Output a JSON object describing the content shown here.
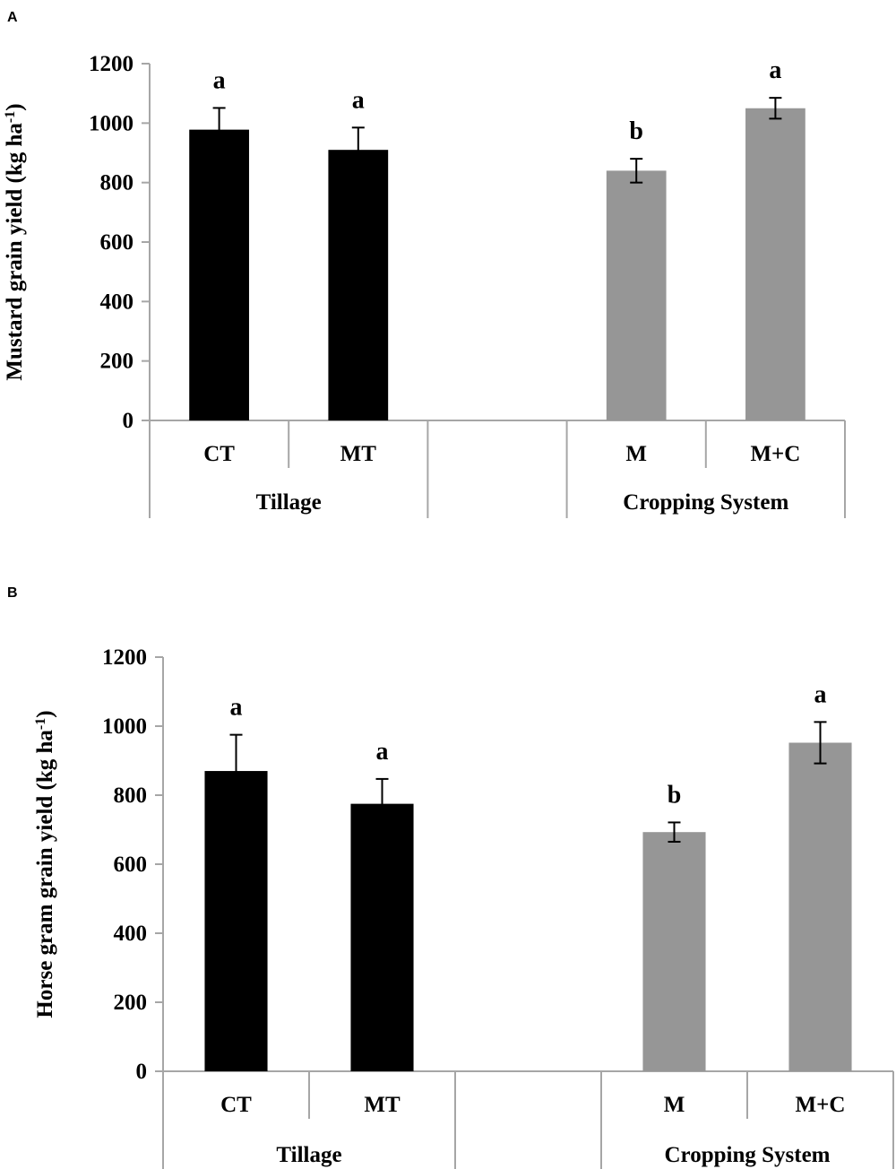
{
  "chart_data": [
    {
      "type": "bar",
      "panel": "A",
      "ylabel": "Mustard grain yield (kg ha",
      "ylabel_sup": "-1",
      "ylabel_close": ")",
      "ylim": [
        0,
        1200
      ],
      "yticks": [
        0,
        200,
        400,
        600,
        800,
        1000,
        1200
      ],
      "categories": [
        "CT",
        "MT",
        "",
        "M",
        "M+C"
      ],
      "values": [
        978,
        910,
        null,
        840,
        1050
      ],
      "errors": [
        73,
        75,
        null,
        40,
        35
      ],
      "significance": [
        "a",
        "a",
        "",
        "b",
        "a"
      ],
      "bar_colors": [
        "#000000",
        "#000000",
        null,
        "#969696",
        "#969696"
      ],
      "groups": [
        {
          "label": "Tillage",
          "start": 0,
          "end": 2
        },
        {
          "label": "Cropping System",
          "start": 3,
          "end": 5
        }
      ]
    },
    {
      "type": "bar",
      "panel": "B",
      "ylabel": "Horse gram grain yield (kg ha",
      "ylabel_sup": "-1",
      "ylabel_close": ")",
      "ylim": [
        0,
        1200
      ],
      "yticks": [
        0,
        200,
        400,
        600,
        800,
        1000,
        1200
      ],
      "categories": [
        "CT",
        "MT",
        "",
        "M",
        "M+C"
      ],
      "values": [
        870,
        775,
        null,
        693,
        952
      ],
      "errors": [
        105,
        72,
        null,
        28,
        60
      ],
      "significance": [
        "a",
        "a",
        "",
        "b",
        "a"
      ],
      "bar_colors": [
        "#000000",
        "#000000",
        null,
        "#969696",
        "#969696"
      ],
      "groups": [
        {
          "label": "Tillage",
          "start": 0,
          "end": 2
        },
        {
          "label": "Cropping System",
          "start": 3,
          "end": 5
        }
      ]
    }
  ]
}
